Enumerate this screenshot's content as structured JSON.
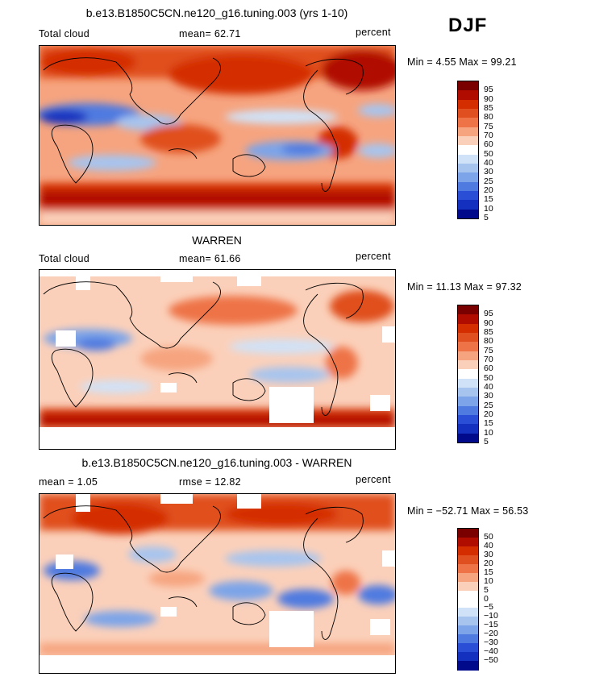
{
  "season": "DJF",
  "panels": [
    {
      "title": "b.e13.B1850C5CN.ne120_g16.tuning.003 (yrs 1-10)",
      "left_label": "Total cloud",
      "mid_label": "mean=  62.71",
      "units": "percent",
      "minmax": "Min =   4.55 Max =  99.21",
      "levels": [
        "95",
        "90",
        "85",
        "80",
        "75",
        "70",
        "60",
        "50",
        "40",
        "30",
        "25",
        "20",
        "15",
        "10",
        "5"
      ],
      "colors": [
        "#7a0000",
        "#b00c00",
        "#d42d00",
        "#e04f1f",
        "#ee7346",
        "#f6a47f",
        "#fbd0ba",
        "#ffffff",
        "#d0e2f7",
        "#a7c4ee",
        "#7da4e8",
        "#4f7ae0",
        "#2a4fd6",
        "#1430bf",
        "#000a8a"
      ]
    },
    {
      "title": "WARREN",
      "left_label": "Total cloud",
      "mid_label": "mean=  61.66",
      "units": "percent",
      "minmax": "Min =  11.13 Max =  97.32",
      "levels": [
        "95",
        "90",
        "85",
        "80",
        "75",
        "70",
        "60",
        "50",
        "40",
        "30",
        "25",
        "20",
        "15",
        "10",
        "5"
      ],
      "colors": [
        "#7a0000",
        "#b00c00",
        "#d42d00",
        "#e04f1f",
        "#ee7346",
        "#f6a47f",
        "#fbd0ba",
        "#ffffff",
        "#d0e2f7",
        "#a7c4ee",
        "#7da4e8",
        "#4f7ae0",
        "#2a4fd6",
        "#1430bf",
        "#000a8a"
      ]
    },
    {
      "title": "b.e13.B1850C5CN.ne120_g16.tuning.003 - WARREN",
      "left_label": "mean =   1.05",
      "mid_label": "rmse =  12.82",
      "units": "percent",
      "minmax": "Min = −52.71 Max =  56.53",
      "levels": [
        "50",
        "40",
        "30",
        "20",
        "15",
        "10",
        "5",
        "0",
        "−5",
        "−10",
        "−15",
        "−20",
        "−30",
        "−40",
        "−50"
      ],
      "colors": [
        "#7a0000",
        "#b00c00",
        "#d42d00",
        "#e04f1f",
        "#ee7346",
        "#f6a47f",
        "#fbd0ba",
        "#ffffff",
        "#ffffff",
        "#d0e2f7",
        "#a7c4ee",
        "#7da4e8",
        "#4f7ae0",
        "#2a4fd6",
        "#1430bf",
        "#000a8a"
      ]
    }
  ]
}
